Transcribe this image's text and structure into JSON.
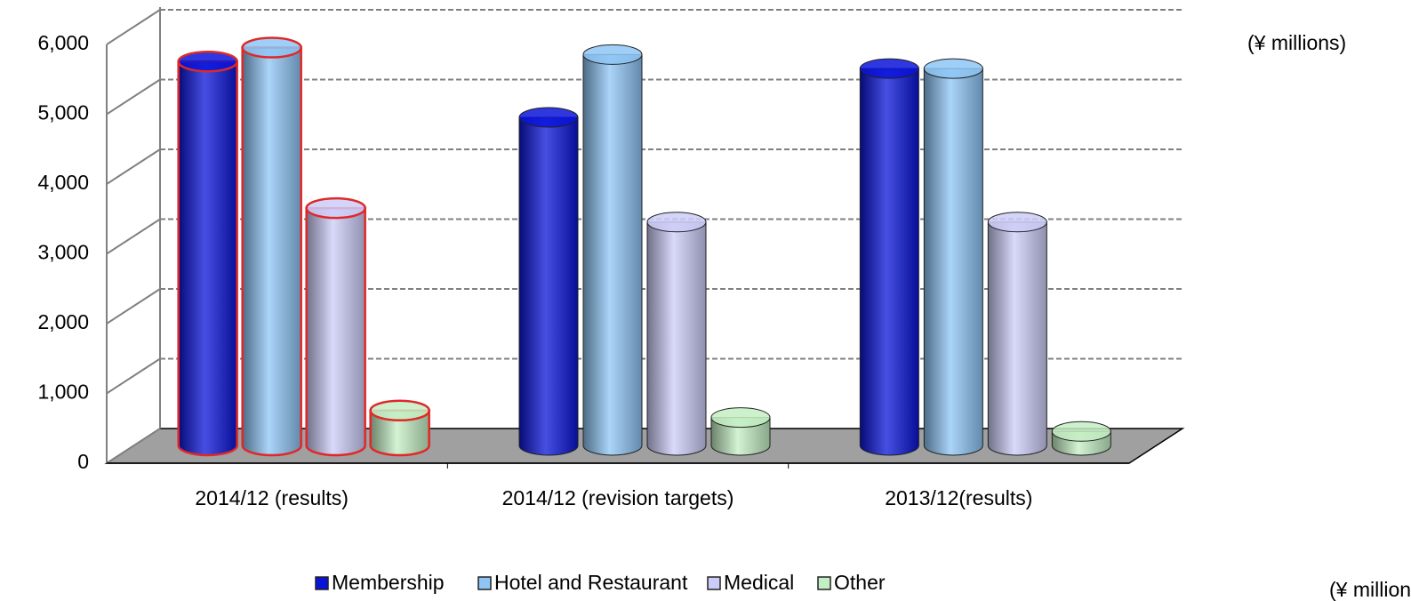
{
  "chart_data": {
    "type": "cylinder_bar",
    "categories": [
      "2014/12 (results)",
      "2014/12 (revision targets)",
      "2013/12(results)"
    ],
    "series": [
      {
        "name": "Membership",
        "color": "#0a14d8",
        "values": [
          5500,
          4700,
          5400
        ]
      },
      {
        "name": "Hotel and Restaurant",
        "color": "#8ec5f5",
        "values": [
          5700,
          5600,
          5400
        ]
      },
      {
        "name": "Medical",
        "color": "#ccccf8",
        "values": [
          3400,
          3200,
          3200
        ]
      },
      {
        "name": "Other",
        "color": "#c4efc4",
        "values": [
          500,
          400,
          200
        ]
      }
    ],
    "ylim": [
      0,
      6000
    ],
    "yticks": [
      0,
      {
        "value": 1000,
        "label": "1,000"
      },
      {
        "value": 2000,
        "label": "2,000"
      },
      {
        "value": 3000,
        "label": "3,000"
      },
      {
        "value": 4000,
        "label": "4,000"
      },
      {
        "value": 5000,
        "label": "5,000"
      },
      {
        "value": 6000,
        "label": "6,000"
      }
    ],
    "grid": true,
    "highlight": {
      "category": 0,
      "color": "#e02828"
    },
    "annotations": [
      "(¥ millions)",
      "(¥ millions)"
    ]
  }
}
